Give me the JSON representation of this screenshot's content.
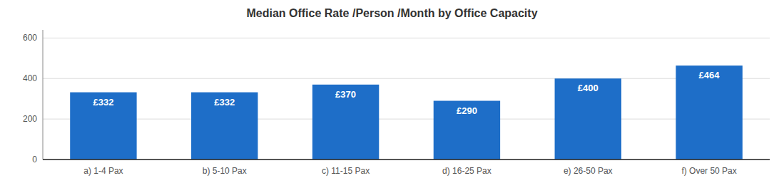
{
  "chart_data": {
    "type": "bar",
    "title": "Median Office Rate /Person /Month by Office Capacity",
    "categories": [
      "a) 1-4 Pax",
      "b) 5-10 Pax",
      "c) 11-15 Pax",
      "d) 16-25 Pax",
      "e) 26-50 Pax",
      "f) Over 50 Pax"
    ],
    "values": [
      332,
      332,
      370,
      290,
      400,
      464
    ],
    "value_labels": [
      "£332",
      "£332",
      "£370",
      "£290",
      "£400",
      "£464"
    ],
    "color": "#1E6EC8",
    "ylim": [
      0,
      640
    ],
    "yticks": [
      0,
      200,
      400,
      600
    ],
    "grid": true,
    "data_labels": true
  }
}
